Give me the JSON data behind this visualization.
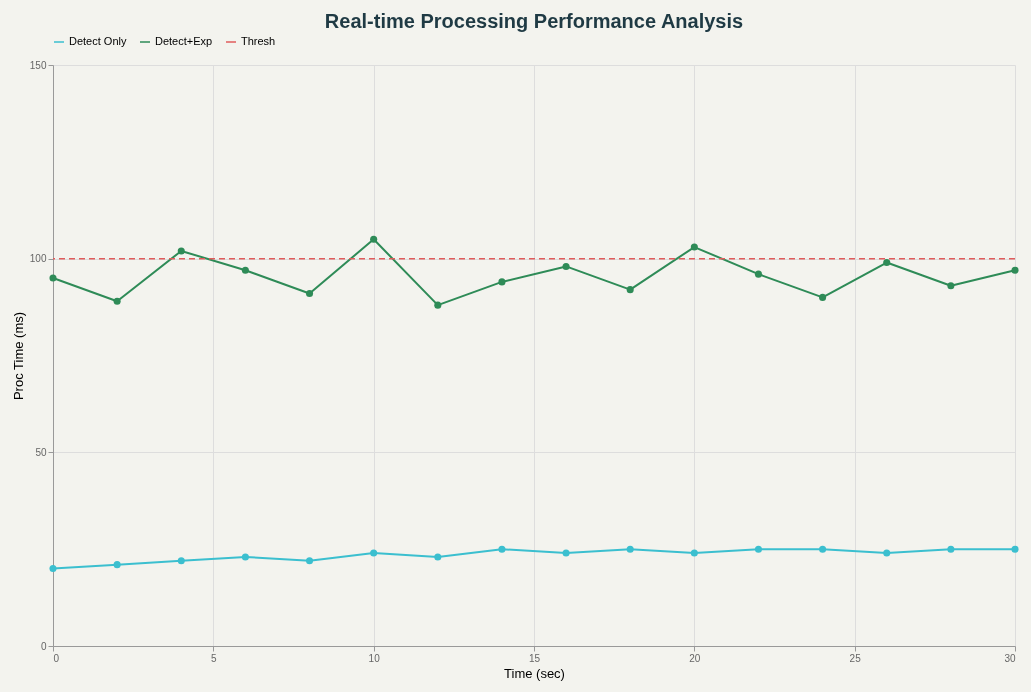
{
  "chart_data": {
    "type": "line",
    "title": "Real-time Processing Performance Analysis",
    "xlabel": "Time (sec)",
    "ylabel": "Proc Time (ms)",
    "x": [
      0,
      2,
      4,
      6,
      8,
      10,
      12,
      14,
      16,
      18,
      20,
      22,
      24,
      26,
      28,
      30
    ],
    "series": [
      {
        "name": "Detect Only",
        "color": "#3bbfcf",
        "values": [
          20,
          21,
          22,
          23,
          22,
          24,
          23,
          25,
          24,
          25,
          24,
          25,
          25,
          24,
          25,
          25
        ]
      },
      {
        "name": "Detect+Exp",
        "color": "#2e8b57",
        "values": [
          95,
          89,
          102,
          97,
          91,
          105,
          88,
          94,
          98,
          92,
          103,
          96,
          90,
          99,
          93,
          97
        ]
      }
    ],
    "ref_lines": [
      {
        "axis": "y",
        "value": 100,
        "label": "Thresh",
        "color": "#e05c5c",
        "line_style": "dashed"
      }
    ],
    "xlim": [
      0,
      30
    ],
    "xticks": [
      0,
      5,
      10,
      15,
      20,
      25,
      30
    ],
    "ylim": [
      0,
      150
    ],
    "yticks": [
      0,
      50,
      100,
      150
    ],
    "grid": true,
    "legend": "top",
    "marker": "circle",
    "line_style": "solid"
  }
}
